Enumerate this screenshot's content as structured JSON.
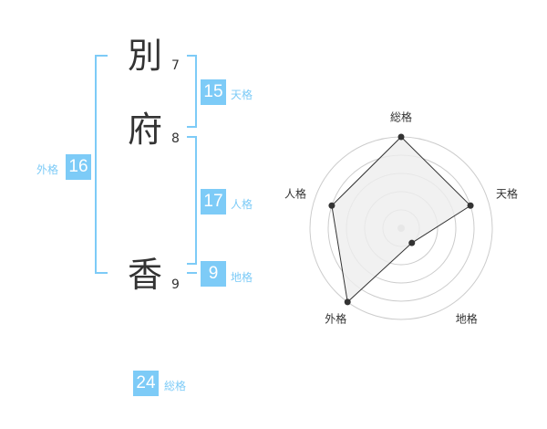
{
  "name": {
    "chars": [
      {
        "char": "別",
        "strokes": "7"
      },
      {
        "char": "府",
        "strokes": "8"
      },
      {
        "char": "香",
        "strokes": "9"
      }
    ]
  },
  "kaku": {
    "tenkaku": {
      "label": "天格",
      "value": "15"
    },
    "jinkaku": {
      "label": "人格",
      "value": "17"
    },
    "chikaku": {
      "label": "地格",
      "value": "9"
    },
    "gaikaku": {
      "label": "外格",
      "value": "16"
    },
    "soukaku": {
      "label": "総格",
      "value": "24"
    }
  },
  "colors": {
    "accent": "#7dcbf7",
    "radar_fill": "#eeeeee",
    "radar_line": "#333333",
    "ring": "#cccccc"
  },
  "chart_data": {
    "type": "radar",
    "axes": [
      "総格",
      "天格",
      "地格",
      "外格",
      "人格"
    ],
    "values": [
      5,
      4,
      1,
      5,
      4
    ],
    "range": [
      0,
      5
    ],
    "rings": 5
  }
}
